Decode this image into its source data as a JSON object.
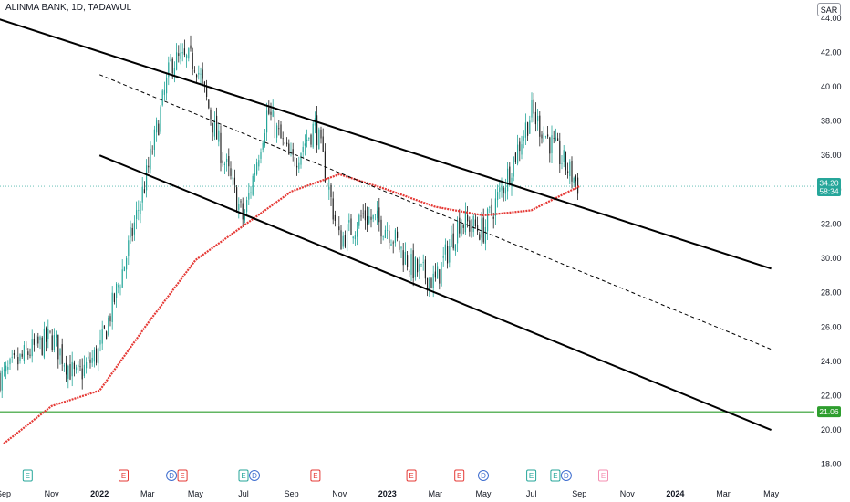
{
  "header": {
    "title": "ALINMA BANK, 1D, TADAWUL",
    "currency": "SAR"
  },
  "chart_data": {
    "type": "candlestick",
    "symbol": "ALINMA BANK",
    "interval": "1D",
    "exchange": "TADAWUL",
    "currency": "SAR",
    "y_ticks": [
      "18.00",
      "20.00",
      "22.00",
      "24.00",
      "26.00",
      "28.00",
      "30.00",
      "32.00",
      "34.00",
      "36.00",
      "38.00",
      "40.00",
      "42.00",
      "44.00"
    ],
    "ylim": [
      17.4,
      44.2
    ],
    "x_ticks": [
      "Sep",
      "Nov",
      "2022",
      "Mar",
      "May",
      "Jul",
      "Sep",
      "Nov",
      "2023",
      "Mar",
      "May",
      "Jul",
      "Sep",
      "Nov",
      "2024",
      "Mar",
      "May"
    ],
    "last_price": "34.20",
    "last_price_value": 34.2,
    "countdown": "58:34",
    "horizontal_line": {
      "label": "21.06",
      "value": 21.06,
      "color": "#2e9e2e"
    },
    "moving_average": {
      "color": "#e53935",
      "points": [
        [
          "Sep 2021",
          19.2
        ],
        [
          "Nov 2021",
          21.4
        ],
        [
          "Jan 2022",
          22.3
        ],
        [
          "Mar 2022",
          26.2
        ],
        [
          "May 2022",
          29.9
        ],
        [
          "Jul 2022",
          31.9
        ],
        [
          "Sep 2022",
          33.9
        ],
        [
          "Nov 2022",
          34.9
        ],
        [
          "Jan 2023",
          34.0
        ],
        [
          "Mar 2023",
          33.0
        ],
        [
          "May 2023",
          32.5
        ],
        [
          "Jul 2023",
          32.8
        ],
        [
          "Sep 2023",
          34.2
        ]
      ]
    },
    "channel": {
      "upper": [
        [
          "Aug 2021",
          44.3
        ],
        [
          "May 2024",
          29.4
        ]
      ],
      "middle": [
        [
          "Jan 2022",
          40.7
        ],
        [
          "May 2024",
          24.7
        ]
      ],
      "lower": [
        [
          "Jan 2022",
          36.0
        ],
        [
          "May 2024",
          20.0
        ]
      ]
    },
    "price_path": [
      [
        "Sep 2021",
        23.1
      ],
      [
        "Oct 2021",
        24.5
      ],
      [
        "Nov 2021",
        25.4
      ],
      [
        "Dec 2021",
        23.0
      ],
      [
        "Jan 2022",
        24.6
      ],
      [
        "Feb 2022",
        29.5
      ],
      [
        "Mar 2022",
        35.0
      ],
      [
        "Apr 2022",
        41.5
      ],
      [
        "May 2022",
        41.5
      ],
      [
        "Jun 2022",
        36.5
      ],
      [
        "Jul 2022",
        32.2
      ],
      [
        "Aug 2022",
        38.6
      ],
      [
        "Sep 2022",
        35.5
      ],
      [
        "Oct 2022",
        37.8
      ],
      [
        "Nov 2022",
        31.0
      ],
      [
        "Dec 2022",
        32.5
      ],
      [
        "Jan 2023",
        31.8
      ],
      [
        "Feb 2023",
        29.5
      ],
      [
        "Mar 2023",
        28.6
      ],
      [
        "Apr 2023",
        32.2
      ],
      [
        "May 2023",
        31.6
      ],
      [
        "Jun 2023",
        34.8
      ],
      [
        "Jul 2023",
        38.5
      ],
      [
        "Aug 2023",
        36.3
      ],
      [
        "Sep 2023",
        34.2
      ]
    ],
    "candle_colors": {
      "up": "#26a69a",
      "down": "#222222"
    },
    "events": [
      {
        "date": "Oct 2021",
        "kind": "earnings",
        "label": "E",
        "color": "#26a69a"
      },
      {
        "date": "Feb 2022",
        "kind": "earnings",
        "label": "E",
        "color": "#e53935"
      },
      {
        "date": "Apr 2022",
        "kind": "dividend",
        "label": "D",
        "color": "#3f6ecf"
      },
      {
        "date": "Apr 2022",
        "kind": "earnings",
        "label": "E",
        "color": "#e53935"
      },
      {
        "date": "Jul 2022",
        "kind": "earnings",
        "label": "E",
        "color": "#26a69a"
      },
      {
        "date": "Jul 2022",
        "kind": "dividend",
        "label": "D",
        "color": "#3f6ecf"
      },
      {
        "date": "Oct 2022",
        "kind": "earnings",
        "label": "E",
        "color": "#e53935"
      },
      {
        "date": "Feb 2023",
        "kind": "earnings",
        "label": "E",
        "color": "#e53935"
      },
      {
        "date": "Apr 2023",
        "kind": "earnings",
        "label": "E",
        "color": "#e53935"
      },
      {
        "date": "May 2023",
        "kind": "dividend",
        "label": "D",
        "color": "#3f6ecf"
      },
      {
        "date": "Jul 2023",
        "kind": "earnings",
        "label": "E",
        "color": "#26a69a"
      },
      {
        "date": "Aug 2023",
        "kind": "earnings",
        "label": "E",
        "color": "#26a69a"
      },
      {
        "date": "Aug 2023",
        "kind": "dividend",
        "label": "D",
        "color": "#3f6ecf"
      },
      {
        "date": "Oct 2023",
        "kind": "earnings",
        "label": "E",
        "color": "#f48fb1"
      }
    ]
  }
}
